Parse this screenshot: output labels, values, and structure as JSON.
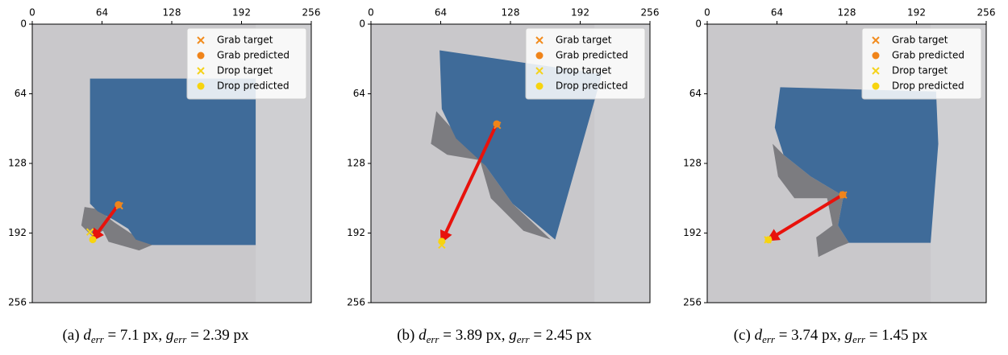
{
  "chart_data": [
    {
      "type": "scatter",
      "xlim": [
        0,
        256
      ],
      "ylim": [
        256,
        0
      ],
      "xticks": [
        0,
        64,
        128,
        192,
        256
      ],
      "yticks": [
        0,
        64,
        128,
        192,
        256
      ],
      "legend": "upper right",
      "caption": [
        "(a) ",
        "d",
        "err",
        " = 7.1 px, ",
        "g",
        "err",
        " = 2.39 px"
      ],
      "series": [
        {
          "name": "Grab target",
          "color": "#f28c1e",
          "marker": "x",
          "x": [
            80
          ],
          "values": [
            167
          ]
        },
        {
          "name": "Grab predicted",
          "color": "#f0841a",
          "marker": "o",
          "x": [
            79
          ],
          "values": [
            166
          ]
        },
        {
          "name": "Drop target",
          "color": "#f5d31c",
          "marker": "x",
          "x": [
            53
          ],
          "values": [
            191
          ]
        },
        {
          "name": "Drop predicted",
          "color": "#f7d40f",
          "marker": "o",
          "x": [
            55.5
          ],
          "values": [
            198
          ]
        }
      ]
    },
    {
      "type": "scatter",
      "xlim": [
        0,
        256
      ],
      "ylim": [
        256,
        0
      ],
      "xticks": [
        0,
        64,
        128,
        192,
        256
      ],
      "yticks": [
        0,
        64,
        128,
        192,
        256
      ],
      "legend": "upper right",
      "caption": [
        "(b) ",
        "d",
        "err",
        " = 3.89 px, ",
        "g",
        "err",
        " = 2.45 px"
      ],
      "series": [
        {
          "name": "Grab target",
          "color": "#f28c1e",
          "marker": "x",
          "x": [
            116
          ],
          "values": [
            93
          ]
        },
        {
          "name": "Grab predicted",
          "color": "#f0841a",
          "marker": "o",
          "x": [
            115.4
          ],
          "values": [
            91.7
          ]
        },
        {
          "name": "Drop target",
          "color": "#f5d31c",
          "marker": "x",
          "x": [
            65
          ],
          "values": [
            203
          ]
        },
        {
          "name": "Drop predicted",
          "color": "#f7d40f",
          "marker": "o",
          "x": [
            65
          ],
          "values": [
            199.7
          ]
        }
      ]
    },
    {
      "type": "scatter",
      "xlim": [
        0,
        256
      ],
      "ylim": [
        256,
        0
      ],
      "xticks": [
        0,
        64,
        128,
        192,
        256
      ],
      "yticks": [
        0,
        64,
        128,
        192,
        256
      ],
      "legend": "upper right",
      "caption": [
        "(c) ",
        "d",
        "err",
        " = 3.74 px, ",
        "g",
        "err",
        " = 1.45 px"
      ],
      "series": [
        {
          "name": "Grab target",
          "color": "#f28c1e",
          "marker": "x",
          "x": [
            125
          ],
          "values": [
            157
          ]
        },
        {
          "name": "Grab predicted",
          "color": "#f0841a",
          "marker": "o",
          "x": [
            124.3
          ],
          "values": [
            156.8
          ]
        },
        {
          "name": "Drop target",
          "color": "#f5d31c",
          "marker": "x",
          "x": [
            55.5
          ],
          "values": [
            198.2
          ]
        },
        {
          "name": "Drop predicted",
          "color": "#f7d40f",
          "marker": "o",
          "x": [
            56.2
          ],
          "values": [
            198.2
          ]
        }
      ]
    }
  ]
}
